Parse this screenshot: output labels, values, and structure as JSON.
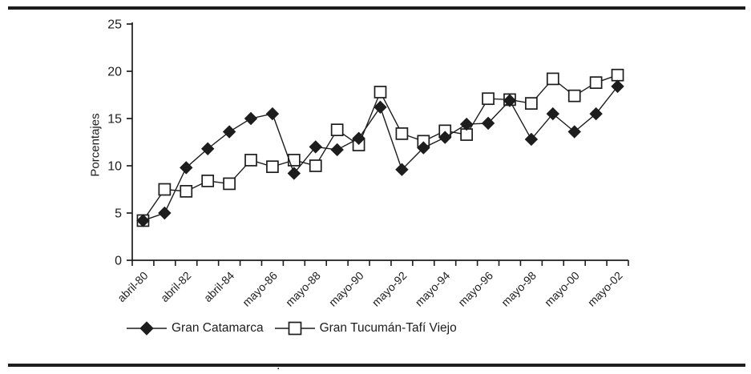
{
  "colors": {
    "ink": "#1d1d1d",
    "background": "#ffffff"
  },
  "figure": {
    "footnote_mark": "."
  },
  "chart_data": {
    "type": "line",
    "title": "",
    "xlabel": "",
    "ylabel": "Porcentajes",
    "ylim": [
      0,
      25
    ],
    "y_ticks": [
      0,
      5,
      10,
      15,
      20,
      25
    ],
    "n_points": 23,
    "grid": false,
    "legend_position": "bottom",
    "x_tick_labels": [
      {
        "index": 0,
        "label": "abril-80"
      },
      {
        "index": 2,
        "label": "abril-82"
      },
      {
        "index": 4,
        "label": "abril-84"
      },
      {
        "index": 6,
        "label": "mayo-86"
      },
      {
        "index": 8,
        "label": "mayo-88"
      },
      {
        "index": 10,
        "label": "mayo-90"
      },
      {
        "index": 12,
        "label": "mayo-92"
      },
      {
        "index": 14,
        "label": "mayo-94"
      },
      {
        "index": 16,
        "label": "mayo-96"
      },
      {
        "index": 18,
        "label": "mayo-98"
      },
      {
        "index": 20,
        "label": "mayo-00"
      },
      {
        "index": 22,
        "label": "mayo-02"
      }
    ],
    "series": [
      {
        "name": "Gran Catamarca",
        "marker": "filled-diamond",
        "values": [
          4.2,
          5.0,
          9.8,
          11.8,
          13.6,
          15.0,
          15.5,
          9.2,
          12.0,
          11.7,
          12.9,
          16.2,
          9.6,
          11.9,
          13.0,
          14.4,
          14.5,
          16.9,
          12.8,
          15.5,
          13.6,
          15.5,
          18.4
        ]
      },
      {
        "name": "Gran Tucumán-Tafí Viejo",
        "marker": "open-square",
        "values": [
          4.2,
          7.5,
          7.3,
          8.4,
          8.1,
          10.6,
          9.9,
          10.6,
          10.0,
          13.8,
          12.2,
          17.8,
          13.4,
          12.6,
          13.7,
          13.3,
          17.1,
          17.0,
          16.6,
          19.2,
          17.4,
          18.8,
          19.6
        ]
      }
    ]
  }
}
